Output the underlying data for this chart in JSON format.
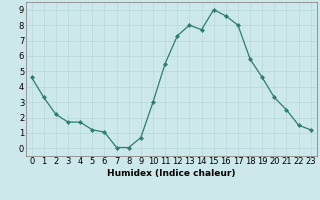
{
  "x": [
    0,
    1,
    2,
    3,
    4,
    5,
    6,
    7,
    8,
    9,
    10,
    11,
    12,
    13,
    14,
    15,
    16,
    17,
    18,
    19,
    20,
    21,
    22,
    23
  ],
  "y": [
    4.6,
    3.3,
    2.2,
    1.7,
    1.7,
    1.2,
    1.05,
    0.05,
    0.05,
    0.7,
    3.0,
    5.5,
    7.3,
    8.0,
    7.7,
    9.0,
    8.6,
    8.0,
    5.8,
    4.6,
    3.3,
    2.5,
    1.5,
    1.2
  ],
  "line_color": "#2e7d6e",
  "marker": "D",
  "marker_size": 2.0,
  "bg_color": "#cce8ea",
  "grid_color": "#b8d8da",
  "xlabel": "Humidex (Indice chaleur)",
  "ylabel_ticks": [
    0,
    1,
    2,
    3,
    4,
    5,
    6,
    7,
    8,
    9
  ],
  "xlim": [
    -0.5,
    23.5
  ],
  "ylim": [
    -0.5,
    9.5
  ],
  "xlabel_fontsize": 6.5,
  "tick_fontsize": 6.0,
  "axes_bg": "#cce8ea",
  "spine_color": "#888888",
  "grid_linewidth": 0.5,
  "line_width": 0.9
}
